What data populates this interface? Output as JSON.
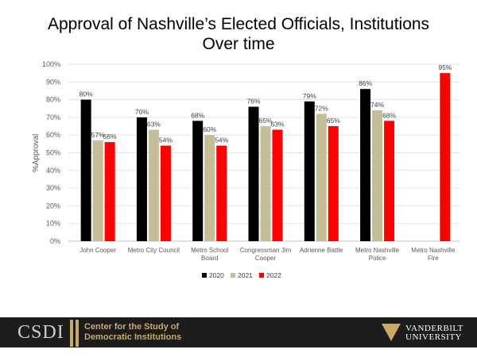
{
  "header": {
    "title_line1": "Approval of Nashville’s Elected Officials, Institutions",
    "title_line2": "Over time"
  },
  "chart_data": {
    "type": "bar",
    "title": "Approval of Nashville’s Elected Officials, Institutions Over time",
    "ylabel": "%Approval",
    "xlabel": "",
    "ylim": [
      0,
      100
    ],
    "yticks": [
      "0%",
      "10%",
      "20%",
      "30%",
      "40%",
      "50%",
      "60%",
      "70%",
      "80%",
      "90%",
      "100%"
    ],
    "grid": true,
    "legend_position": "bottom",
    "categories": [
      [
        "John Cooper"
      ],
      [
        "Metro City Council"
      ],
      [
        "Metro School",
        "Board"
      ],
      [
        "Congressman Jim",
        "Cooper"
      ],
      [
        "Adrienne Battle"
      ],
      [
        "Metro Nashville",
        "Police"
      ],
      [
        "Metro Nashville",
        "Fire"
      ]
    ],
    "series": [
      {
        "name": "2020",
        "color": "#000000",
        "values": [
          80,
          70,
          68,
          76,
          79,
          86,
          null
        ]
      },
      {
        "name": "2021",
        "color": "#c4bd97",
        "values": [
          57,
          63,
          60,
          65,
          72,
          74,
          null
        ]
      },
      {
        "name": "2022",
        "color": "#ff0000",
        "values": [
          56,
          54,
          54,
          63,
          65,
          68,
          95
        ]
      }
    ]
  },
  "footer": {
    "left_logo": "CSDI",
    "left_text_line1": "Center for the Study of",
    "left_text_line2": "Democratic Institutions",
    "right_text_line1": "VANDERBILT",
    "right_text_line2": "UNIVERSITY"
  }
}
